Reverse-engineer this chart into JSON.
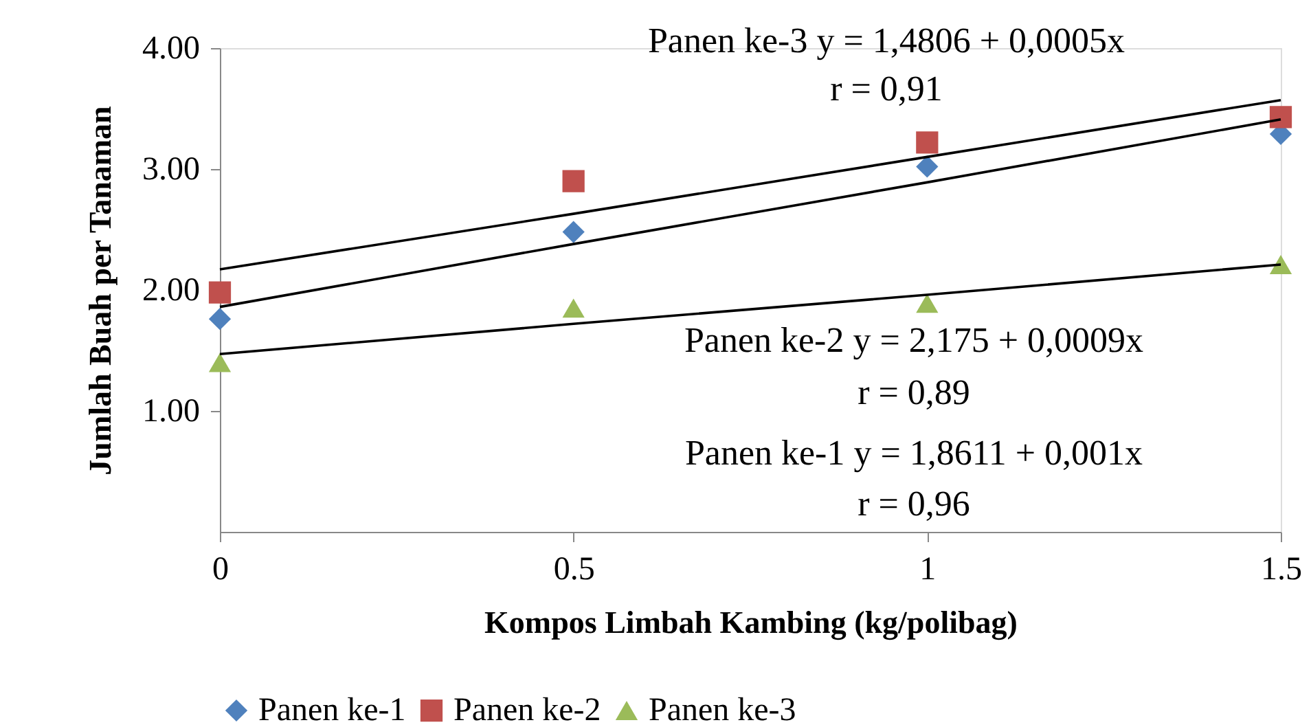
{
  "chart_data": {
    "type": "scatter",
    "xlabel": "Kompos Limbah Kambing (kg/polibag)",
    "ylabel": "Jumlah Buah per Tanaman",
    "x": [
      0,
      0.5,
      1,
      1.5
    ],
    "series": [
      {
        "name": "Panen ke-1",
        "color": "#4f81bd",
        "marker": "diamond",
        "values": [
          1.76,
          2.48,
          3.02,
          3.29
        ]
      },
      {
        "name": "Panen ke-2",
        "color": "#c0504d",
        "marker": "square",
        "values": [
          1.98,
          2.9,
          3.22,
          3.43
        ]
      },
      {
        "name": "Panen ke-3",
        "color": "#9bbb59",
        "marker": "triangle",
        "values": [
          1.4,
          1.85,
          1.89,
          2.21
        ]
      },
      {
        "type": "line",
        "color": "#000000",
        "values": [
          2.17,
          2.63,
          3.1,
          3.57
        ]
      },
      {
        "type": "line",
        "color": "#000000",
        "values": [
          1.86,
          2.38,
          2.89,
          3.41
        ]
      },
      {
        "type": "line",
        "color": "#000000",
        "values": [
          1.47,
          1.72,
          1.96,
          2.21
        ]
      }
    ],
    "xlim": [
      0,
      1.5
    ],
    "xticks": [
      0,
      0.5,
      1,
      1.5
    ],
    "ylim": [
      0,
      4
    ],
    "yticks": [
      {
        "value": 1,
        "label": "1.00"
      },
      {
        "value": 2,
        "label": "2.00"
      },
      {
        "value": 3,
        "label": "3.00"
      },
      {
        "value": 4,
        "label": "4.00"
      }
    ],
    "annotations": [
      "Panen ke-3 y = 1,4806 + 0,0005x",
      "r = 0,91",
      "Panen ke-2 y = 2,175 + 0,0009x",
      "r = 0,89",
      "Panen ke-1 y =  1,8611 + 0,001x",
      "r = 0,96"
    ],
    "legend": "bottom",
    "grid": false
  }
}
